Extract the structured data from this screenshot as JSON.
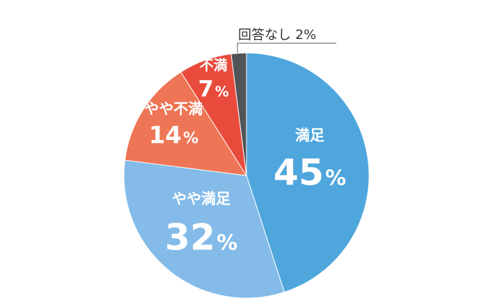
{
  "chart_data": {
    "type": "pie",
    "start": "top",
    "direction": "clockwise",
    "slices": [
      {
        "label": "満足",
        "value": 45,
        "display": "45",
        "color": "#4ea6dc"
      },
      {
        "label": "やや満足",
        "value": 32,
        "display": "32",
        "color": "#84bbe8"
      },
      {
        "label": "やや不満",
        "value": 14,
        "display": "14",
        "color": "#ee7555"
      },
      {
        "label": "不満",
        "value": 7,
        "display": "7",
        "color": "#e84b3c"
      },
      {
        "label": "回答なし",
        "value": 2,
        "display": "2",
        "color": "#515559"
      }
    ],
    "percent_sign": "%",
    "outside_label": "回答なし 2%"
  }
}
